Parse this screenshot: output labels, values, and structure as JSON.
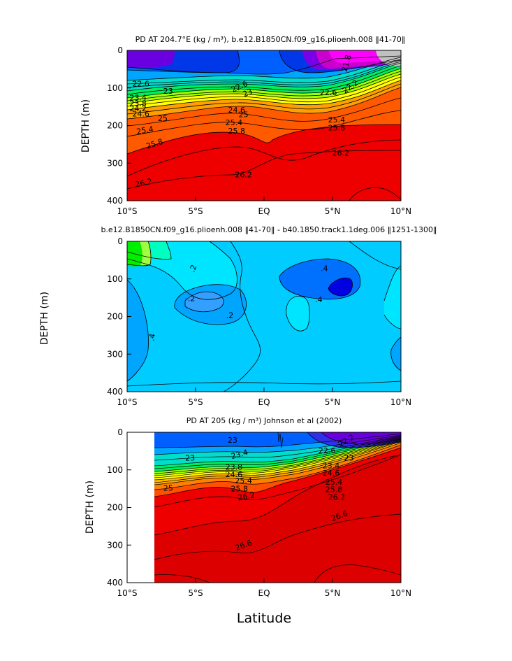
{
  "figure": {
    "xlabel": "Latitude"
  },
  "chart_data": [
    {
      "type": "contour",
      "title": "PD AT 204.7°E (kg / m³), b.e12.B1850CN.f09_g16.plioenh.008 ‖41-70‖",
      "xlabel": "",
      "ylabel": "DEPTH (m)",
      "x_ticks": [
        "10°S",
        "5°S",
        "EQ",
        "5°N",
        "10°N"
      ],
      "x_values": [
        -10,
        -5,
        0,
        5,
        10
      ],
      "y_ticks": [
        "0",
        "100",
        "200",
        "300",
        "400"
      ],
      "y_values": [
        0,
        100,
        200,
        300,
        400
      ],
      "xlim": [
        -10,
        10
      ],
      "ylim": [
        400,
        0
      ],
      "contour_labels": [
        {
          "text": "22.6",
          "lat": -9.0,
          "depth": 88,
          "rot": 0
        },
        {
          "text": "23",
          "lat": -7.0,
          "depth": 108,
          "rot": 0
        },
        {
          "text": "23.4",
          "lat": -9.2,
          "depth": 126,
          "rot": 0
        },
        {
          "text": "23.8",
          "lat": -9.2,
          "depth": 140,
          "rot": 0
        },
        {
          "text": "24.2",
          "lat": -9.2,
          "depth": 154,
          "rot": 0
        },
        {
          "text": "24.6",
          "lat": -9.0,
          "depth": 168,
          "rot": 0
        },
        {
          "text": "25",
          "lat": -7.4,
          "depth": 180,
          "rot": 0
        },
        {
          "text": "25.4",
          "lat": -8.7,
          "depth": 212,
          "rot": -10
        },
        {
          "text": "25.8",
          "lat": -8.0,
          "depth": 248,
          "rot": -18
        },
        {
          "text": "26.2",
          "lat": -8.8,
          "depth": 352,
          "rot": -12
        },
        {
          "text": "22.6",
          "lat": -1.8,
          "depth": 96,
          "rot": -25
        },
        {
          "text": "23",
          "lat": -1.2,
          "depth": 112,
          "rot": -25
        },
        {
          "text": "24.6",
          "lat": -2.0,
          "depth": 158,
          "rot": 0
        },
        {
          "text": "25",
          "lat": -1.5,
          "depth": 170,
          "rot": 0
        },
        {
          "text": "25.4",
          "lat": -2.2,
          "depth": 192,
          "rot": 0
        },
        {
          "text": "25.8",
          "lat": -2.0,
          "depth": 214,
          "rot": 0
        },
        {
          "text": "26.2",
          "lat": -1.5,
          "depth": 330,
          "rot": 0
        },
        {
          "text": "22.6",
          "lat": 4.7,
          "depth": 112,
          "rot": 0
        },
        {
          "text": "25.4",
          "lat": 5.3,
          "depth": 184,
          "rot": 0
        },
        {
          "text": "25.8",
          "lat": 5.3,
          "depth": 206,
          "rot": 0
        },
        {
          "text": "26.2",
          "lat": 5.6,
          "depth": 273,
          "rot": 0
        },
        {
          "text": "21.8",
          "lat": 6.0,
          "depth": 34,
          "rot": -75
        },
        {
          "text": "22.2",
          "lat": 6.3,
          "depth": 96,
          "rot": -35
        }
      ]
    },
    {
      "type": "contour",
      "title": "b.e12.B1850CN.f09_g16.plioenh.008 ‖41-70‖ - b40.1850.track1.1deg.006 ‖1251-1300‖",
      "xlabel": "",
      "ylabel": "DEPTH (m)",
      "x_ticks": [
        "10°S",
        "5°S",
        "EQ",
        "5°N",
        "10°N"
      ],
      "x_values": [
        -10,
        -5,
        0,
        5,
        10
      ],
      "y_ticks": [
        "0",
        "100",
        "200",
        "300",
        "400"
      ],
      "y_values": [
        0,
        100,
        200,
        300,
        400
      ],
      "xlim": [
        -10,
        10
      ],
      "ylim": [
        400,
        0
      ],
      "contour_labels": [
        {
          "text": ".2",
          "lat": -5.2,
          "depth": 72,
          "rot": -70
        },
        {
          "text": ".2",
          "lat": -2.5,
          "depth": 196,
          "rot": 0
        },
        {
          "text": "-.2",
          "lat": -5.4,
          "depth": 152,
          "rot": 0
        },
        {
          "text": ".4",
          "lat": 4.4,
          "depth": 72,
          "rot": 0
        },
        {
          "text": ".4",
          "lat": 4.0,
          "depth": 154,
          "rot": 0
        },
        {
          "text": ".4",
          "lat": -8.2,
          "depth": 255,
          "rot": -80
        }
      ]
    },
    {
      "type": "contour",
      "title": "PD AT 205 (kg / m³) Johnson et al (2002)",
      "xlabel": "Latitude",
      "ylabel": "DEPTH (m)",
      "x_ticks": [
        "10°S",
        "5°S",
        "EQ",
        "5°N",
        "10°N"
      ],
      "x_values": [
        -10,
        -5,
        0,
        5,
        10
      ],
      "y_ticks": [
        "0",
        "100",
        "200",
        "300",
        "400"
      ],
      "y_values": [
        0,
        100,
        200,
        300,
        400
      ],
      "xlim": [
        -10,
        10
      ],
      "ylim": [
        400,
        0
      ],
      "data_start_lat": -8,
      "contour_labels": [
        {
          "text": "22.2",
          "lat": 6.0,
          "depth": 22,
          "rot": -30
        },
        {
          "text": "23",
          "lat": -2.3,
          "depth": 20,
          "rot": 0
        },
        {
          "text": "23",
          "lat": -5.4,
          "depth": 68,
          "rot": 0
        },
        {
          "text": "23.4",
          "lat": -1.8,
          "depth": 58,
          "rot": -15
        },
        {
          "text": "23.8",
          "lat": -2.2,
          "depth": 92,
          "rot": 0
        },
        {
          "text": "24.6",
          "lat": -2.2,
          "depth": 112,
          "rot": 0
        },
        {
          "text": "25.4",
          "lat": -1.5,
          "depth": 128,
          "rot": 0
        },
        {
          "text": "25",
          "lat": -7.0,
          "depth": 148,
          "rot": 0
        },
        {
          "text": "25.8",
          "lat": -1.8,
          "depth": 150,
          "rot": 0
        },
        {
          "text": "26.2",
          "lat": -1.3,
          "depth": 170,
          "rot": -10
        },
        {
          "text": "26.6",
          "lat": -1.5,
          "depth": 300,
          "rot": -20
        },
        {
          "text": "22.6",
          "lat": 4.6,
          "depth": 48,
          "rot": 0
        },
        {
          "text": "23",
          "lat": 6.2,
          "depth": 68,
          "rot": 0
        },
        {
          "text": "23.4",
          "lat": 4.9,
          "depth": 88,
          "rot": 0
        },
        {
          "text": "24.6",
          "lat": 4.9,
          "depth": 108,
          "rot": 0
        },
        {
          "text": "25.4",
          "lat": 5.1,
          "depth": 132,
          "rot": 0
        },
        {
          "text": "25.8",
          "lat": 5.1,
          "depth": 152,
          "rot": 0
        },
        {
          "text": "26.2",
          "lat": 5.3,
          "depth": 172,
          "rot": 0
        },
        {
          "text": "26.6",
          "lat": 5.5,
          "depth": 222,
          "rot": -20
        }
      ]
    }
  ]
}
